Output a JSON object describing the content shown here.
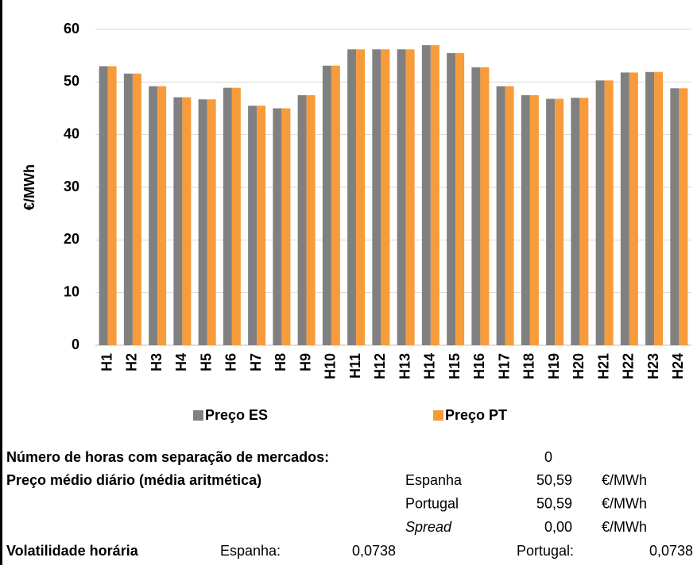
{
  "chart_data": {
    "type": "bar",
    "y_label": "€/MWh",
    "categories": [
      "H1",
      "H2",
      "H3",
      "H4",
      "H5",
      "H6",
      "H7",
      "H8",
      "H9",
      "H10",
      "H11",
      "H12",
      "H13",
      "H14",
      "H15",
      "H16",
      "H17",
      "H18",
      "H19",
      "H20",
      "H21",
      "H22",
      "H23",
      "H24"
    ],
    "series": [
      {
        "name": "Preço ES",
        "color": "#808080",
        "values": [
          53.0,
          51.6,
          49.2,
          47.1,
          46.7,
          48.9,
          45.5,
          45.0,
          47.5,
          53.1,
          56.2,
          56.2,
          56.2,
          57.0,
          55.5,
          52.8,
          49.2,
          47.5,
          46.8,
          47.0,
          50.3,
          51.8,
          51.9,
          48.8
        ]
      },
      {
        "name": "Preço PT",
        "color": "#f79b3b",
        "values": [
          53.0,
          51.6,
          49.2,
          47.1,
          46.7,
          48.9,
          45.5,
          45.0,
          47.5,
          53.1,
          56.2,
          56.2,
          56.2,
          57.0,
          55.5,
          52.8,
          49.2,
          47.5,
          46.8,
          47.0,
          50.3,
          51.8,
          51.9,
          48.8
        ]
      }
    ],
    "ylim": [
      0,
      60
    ],
    "yticks": [
      0,
      10,
      20,
      30,
      40,
      50,
      60
    ],
    "grid": true,
    "legend": "bottom"
  },
  "summary": {
    "hours_label": "Número de horas com separação de mercados:",
    "hours_value": "0",
    "avg_label": "Preço médio diário (média aritmética)",
    "avg_rows": [
      [
        "Espanha",
        "50,59",
        "€/MWh"
      ],
      [
        "Portugal",
        "50,59",
        "€/MWh"
      ],
      [
        "Spread",
        "0,00",
        "€/MWh"
      ]
    ],
    "vol_label": "Volatilidade horária",
    "vol_es_label": "Espanha:",
    "vol_es_value": "0,0738",
    "vol_pt_label": "Portugal:",
    "vol_pt_value": "0,0738"
  }
}
